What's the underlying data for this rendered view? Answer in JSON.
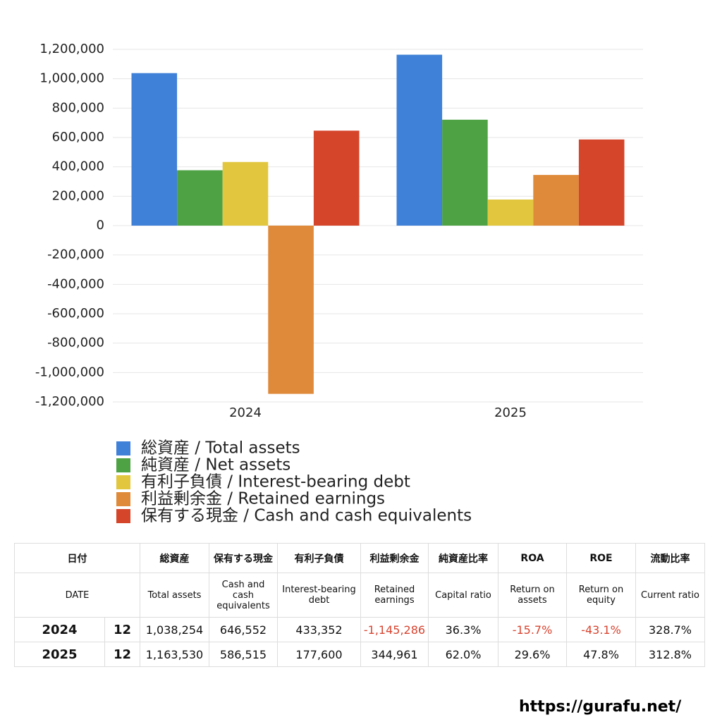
{
  "chart_data": {
    "type": "bar",
    "categories": [
      "2024",
      "2025"
    ],
    "series": [
      {
        "name": "総資産 / Total assets",
        "color": "#3f80d8",
        "values": [
          1038254,
          1163530
        ]
      },
      {
        "name": "純資産 / Net assets",
        "color": "#4ea244",
        "values": [
          377000,
          721000
        ]
      },
      {
        "name": "有利子負債 / Interest-bearing debt",
        "color": "#e2c73e",
        "values": [
          433352,
          177600
        ]
      },
      {
        "name": "利益剰余金 / Retained earnings",
        "color": "#df8a3a",
        "values": [
          -1145286,
          344961
        ]
      },
      {
        "name": "保有する現金 /  Cash and cash equivalents",
        "color": "#d4452a",
        "values": [
          646552,
          586515
        ]
      }
    ],
    "ylim": [
      -1200000,
      1200000
    ],
    "yticks": [
      {
        "value": -1200000,
        "label": "-1,200,000"
      },
      {
        "value": -1000000,
        "label": "-1,000,000"
      },
      {
        "value": -800000,
        "label": "-800,000"
      },
      {
        "value": -600000,
        "label": "-600,000"
      },
      {
        "value": -400000,
        "label": "-400,000"
      },
      {
        "value": -200000,
        "label": "-200,000"
      },
      0,
      {
        "value": 200000,
        "label": "200,000"
      },
      {
        "value": 400000,
        "label": "400,000"
      },
      {
        "value": 600000,
        "label": "600,000"
      },
      {
        "value": 800000,
        "label": "800,000"
      },
      {
        "value": 1000000,
        "label": "1,000,000"
      },
      {
        "value": 1200000,
        "label": "1,200,000"
      }
    ],
    "grid": true
  },
  "table": {
    "headers_ja": [
      "日付",
      "総資産",
      "保有する現金",
      "有利子負債",
      "利益剰余金",
      "純資産比率",
      "ROA",
      "ROE",
      "流動比率"
    ],
    "headers_en": [
      "DATE",
      "Total assets",
      "Cash and cash equivalents",
      "Interest-bearing debt",
      "Retained earnings",
      "Capital ratio",
      "Return on assets",
      "Return on equity",
      "Current ratio"
    ],
    "rows": [
      [
        "2024",
        "12",
        "1,038,254",
        "646,552",
        "433,352",
        "-1,145,286",
        "36.3%",
        "-15.7%",
        "-43.1%",
        "328.7%"
      ],
      [
        "2025",
        "12",
        "1,163,530",
        "586,515",
        "177,600",
        "344,961",
        "62.0%",
        "29.6%",
        "47.8%",
        "312.8%"
      ]
    ]
  },
  "footer": "https://gurafu.net/"
}
